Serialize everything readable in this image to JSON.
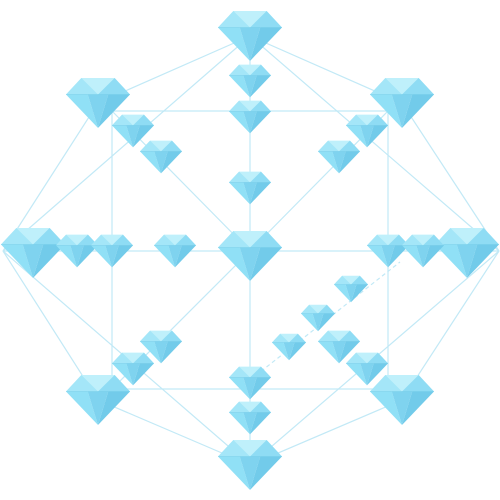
{
  "colors": {
    "gem": "#8fdcf4",
    "gem_light": "#bff0fb",
    "gem_dark": "#72cbea",
    "frame_line": "#c2e9f6",
    "background": "#ffffff"
  },
  "icon": "diamond-icon"
}
